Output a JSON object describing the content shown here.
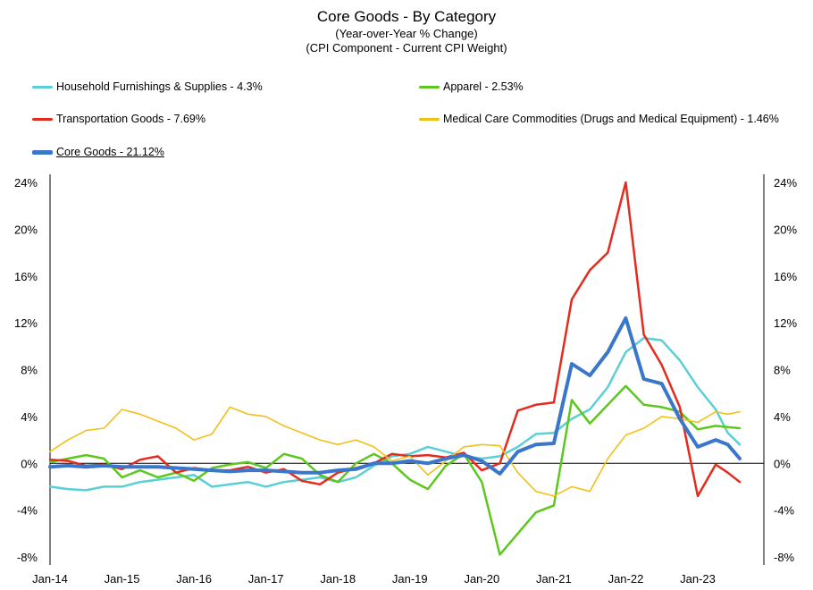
{
  "chart_data": {
    "type": "line",
    "title": "Core Goods - By Category",
    "subtitle1": "(Year-over-Year % Change)",
    "subtitle2": "(CPI Component - Current CPI Weight)",
    "xlabel": "",
    "ylabel": "",
    "ylim": [
      -8,
      24
    ],
    "y_ticks": [
      "24%",
      "20%",
      "16%",
      "12%",
      "8%",
      "4%",
      "0%",
      "-4%",
      "-8%"
    ],
    "x_ticks": [
      "Jan-14",
      "Jan-15",
      "Jan-16",
      "Jan-17",
      "Jan-18",
      "Jan-19",
      "Jan-20",
      "Jan-21",
      "Jan-22",
      "Jan-23"
    ],
    "x_range": [
      "Jan-14",
      "Aug-23"
    ],
    "grid": false,
    "legend_position": "top",
    "series": [
      {
        "name": "Household Furnishings & Supplies - 4.3%",
        "color": "#5BCFD6",
        "points": [
          [
            "Jan-14",
            -2.0
          ],
          [
            "Apr-14",
            -2.2
          ],
          [
            "Jul-14",
            -2.3
          ],
          [
            "Oct-14",
            -2.0
          ],
          [
            "Jan-15",
            -2.0
          ],
          [
            "Apr-15",
            -1.6
          ],
          [
            "Jul-15",
            -1.4
          ],
          [
            "Oct-15",
            -1.2
          ],
          [
            "Jan-16",
            -1.0
          ],
          [
            "Apr-16",
            -2.0
          ],
          [
            "Jul-16",
            -1.8
          ],
          [
            "Oct-16",
            -1.6
          ],
          [
            "Jan-17",
            -2.0
          ],
          [
            "Apr-17",
            -1.6
          ],
          [
            "Jul-17",
            -1.4
          ],
          [
            "Oct-17",
            -1.2
          ],
          [
            "Jan-18",
            -1.6
          ],
          [
            "Apr-18",
            -1.2
          ],
          [
            "Jul-18",
            -0.2
          ],
          [
            "Oct-18",
            0.6
          ],
          [
            "Jan-19",
            0.8
          ],
          [
            "Apr-19",
            1.4
          ],
          [
            "Jul-19",
            1.0
          ],
          [
            "Oct-19",
            0.6
          ],
          [
            "Jan-20",
            0.4
          ],
          [
            "Apr-20",
            0.6
          ],
          [
            "Jul-20",
            1.4
          ],
          [
            "Oct-20",
            2.5
          ],
          [
            "Jan-21",
            2.6
          ],
          [
            "Apr-21",
            3.8
          ],
          [
            "Jul-21",
            4.6
          ],
          [
            "Oct-21",
            6.5
          ],
          [
            "Jan-22",
            9.5
          ],
          [
            "Apr-22",
            10.7
          ],
          [
            "Jul-22",
            10.5
          ],
          [
            "Oct-22",
            8.8
          ],
          [
            "Jan-23",
            6.5
          ],
          [
            "Apr-23",
            4.6
          ],
          [
            "Jun-23",
            2.6
          ],
          [
            "Aug-23",
            1.6
          ]
        ]
      },
      {
        "name": "Apparel - 2.53%",
        "color": "#5CC81E",
        "points": [
          [
            "Jan-14",
            0.1
          ],
          [
            "Apr-14",
            0.4
          ],
          [
            "Jul-14",
            0.7
          ],
          [
            "Oct-14",
            0.4
          ],
          [
            "Jan-15",
            -1.2
          ],
          [
            "Apr-15",
            -0.6
          ],
          [
            "Jul-15",
            -1.2
          ],
          [
            "Oct-15",
            -0.8
          ],
          [
            "Jan-16",
            -1.5
          ],
          [
            "Apr-16",
            -0.4
          ],
          [
            "Jul-16",
            -0.1
          ],
          [
            "Oct-16",
            0.1
          ],
          [
            "Jan-17",
            -0.4
          ],
          [
            "Apr-17",
            0.8
          ],
          [
            "Jul-17",
            0.4
          ],
          [
            "Oct-17",
            -1.0
          ],
          [
            "Jan-18",
            -1.6
          ],
          [
            "Apr-18",
            0.0
          ],
          [
            "Jul-18",
            0.8
          ],
          [
            "Oct-18",
            0.0
          ],
          [
            "Jan-19",
            -1.4
          ],
          [
            "Apr-19",
            -2.2
          ],
          [
            "Jul-19",
            -0.2
          ],
          [
            "Oct-19",
            0.8
          ],
          [
            "Jan-20",
            -1.6
          ],
          [
            "Apr-20",
            -7.8
          ],
          [
            "Jul-20",
            -6.0
          ],
          [
            "Oct-20",
            -4.2
          ],
          [
            "Jan-21",
            -3.6
          ],
          [
            "Apr-21",
            5.4
          ],
          [
            "Jul-21",
            3.4
          ],
          [
            "Oct-21",
            5.0
          ],
          [
            "Jan-22",
            6.6
          ],
          [
            "Apr-22",
            5.0
          ],
          [
            "Jul-22",
            4.8
          ],
          [
            "Oct-22",
            4.4
          ],
          [
            "Jan-23",
            2.9
          ],
          [
            "Apr-23",
            3.2
          ],
          [
            "Jun-23",
            3.1
          ],
          [
            "Aug-23",
            3.0
          ]
        ]
      },
      {
        "name": "Transportation Goods - 7.69%",
        "color": "#E52A1E",
        "points": [
          [
            "Jan-14",
            0.3
          ],
          [
            "Apr-14",
            0.2
          ],
          [
            "Jul-14",
            -0.2
          ],
          [
            "Oct-14",
            -0.1
          ],
          [
            "Jan-15",
            -0.5
          ],
          [
            "Apr-15",
            0.3
          ],
          [
            "Jul-15",
            0.6
          ],
          [
            "Oct-15",
            -0.8
          ],
          [
            "Jan-16",
            -0.4
          ],
          [
            "Apr-16",
            -0.6
          ],
          [
            "Jul-16",
            -0.6
          ],
          [
            "Oct-16",
            -0.3
          ],
          [
            "Jan-17",
            -0.8
          ],
          [
            "Apr-17",
            -0.5
          ],
          [
            "Jul-17",
            -1.5
          ],
          [
            "Oct-17",
            -1.8
          ],
          [
            "Jan-18",
            -0.8
          ],
          [
            "Apr-18",
            -0.4
          ],
          [
            "Jul-18",
            0.0
          ],
          [
            "Oct-18",
            0.8
          ],
          [
            "Jan-19",
            0.6
          ],
          [
            "Apr-19",
            0.7
          ],
          [
            "Jul-19",
            0.5
          ],
          [
            "Oct-19",
            0.9
          ],
          [
            "Jan-20",
            -0.6
          ],
          [
            "Apr-20",
            0.0
          ],
          [
            "Jul-20",
            4.5
          ],
          [
            "Oct-20",
            5.0
          ],
          [
            "Jan-21",
            5.2
          ],
          [
            "Apr-21",
            14.0
          ],
          [
            "Jul-21",
            16.5
          ],
          [
            "Oct-21",
            18.0
          ],
          [
            "Jan-22",
            24.0
          ],
          [
            "Apr-22",
            11.0
          ],
          [
            "Jul-22",
            8.4
          ],
          [
            "Oct-22",
            4.8
          ],
          [
            "Jan-23",
            -2.8
          ],
          [
            "Apr-23",
            -0.1
          ],
          [
            "Jun-23",
            -0.8
          ],
          [
            "Aug-23",
            -1.6
          ]
        ]
      },
      {
        "name": "Medical Care Commodities (Drugs and Medical Equipment) - 1.46%",
        "color": "#F2C019",
        "points": [
          [
            "Jan-14",
            1.0
          ],
          [
            "Apr-14",
            2.0
          ],
          [
            "Jul-14",
            2.8
          ],
          [
            "Oct-14",
            3.0
          ],
          [
            "Jan-15",
            4.6
          ],
          [
            "Apr-15",
            4.2
          ],
          [
            "Jul-15",
            3.6
          ],
          [
            "Oct-15",
            3.0
          ],
          [
            "Jan-16",
            2.0
          ],
          [
            "Apr-16",
            2.5
          ],
          [
            "Jul-16",
            4.8
          ],
          [
            "Oct-16",
            4.2
          ],
          [
            "Jan-17",
            4.0
          ],
          [
            "Apr-17",
            3.2
          ],
          [
            "Jul-17",
            2.6
          ],
          [
            "Oct-17",
            2.0
          ],
          [
            "Jan-18",
            1.6
          ],
          [
            "Apr-18",
            2.0
          ],
          [
            "Jul-18",
            1.4
          ],
          [
            "Oct-18",
            0.2
          ],
          [
            "Jan-19",
            0.6
          ],
          [
            "Apr-19",
            -1.0
          ],
          [
            "Jul-19",
            0.2
          ],
          [
            "Oct-19",
            1.4
          ],
          [
            "Jan-20",
            1.6
          ],
          [
            "Apr-20",
            1.5
          ],
          [
            "Jul-20",
            -0.8
          ],
          [
            "Oct-20",
            -2.4
          ],
          [
            "Jan-21",
            -2.8
          ],
          [
            "Apr-21",
            -2.0
          ],
          [
            "Jul-21",
            -2.4
          ],
          [
            "Oct-21",
            0.4
          ],
          [
            "Jan-22",
            2.4
          ],
          [
            "Apr-22",
            3.0
          ],
          [
            "Jul-22",
            4.0
          ],
          [
            "Oct-22",
            3.8
          ],
          [
            "Jan-23",
            3.5
          ],
          [
            "Apr-23",
            4.4
          ],
          [
            "Jun-23",
            4.2
          ],
          [
            "Aug-23",
            4.4
          ]
        ]
      },
      {
        "name": "Core Goods - 21.12%",
        "color": "#3A76C9",
        "points": [
          [
            "Jan-14",
            -0.3
          ],
          [
            "Apr-14",
            -0.2
          ],
          [
            "Jul-14",
            -0.3
          ],
          [
            "Oct-14",
            -0.2
          ],
          [
            "Jan-15",
            -0.3
          ],
          [
            "Apr-15",
            -0.3
          ],
          [
            "Jul-15",
            -0.3
          ],
          [
            "Oct-15",
            -0.4
          ],
          [
            "Jan-16",
            -0.5
          ],
          [
            "Apr-16",
            -0.6
          ],
          [
            "Jul-16",
            -0.7
          ],
          [
            "Oct-16",
            -0.6
          ],
          [
            "Jan-17",
            -0.6
          ],
          [
            "Apr-17",
            -0.7
          ],
          [
            "Jul-17",
            -0.8
          ],
          [
            "Oct-17",
            -0.8
          ],
          [
            "Jan-18",
            -0.6
          ],
          [
            "Apr-18",
            -0.5
          ],
          [
            "Jul-18",
            0.0
          ],
          [
            "Oct-18",
            0.0
          ],
          [
            "Jan-19",
            0.2
          ],
          [
            "Apr-19",
            0.0
          ],
          [
            "Jul-19",
            0.4
          ],
          [
            "Oct-19",
            0.7
          ],
          [
            "Jan-20",
            0.2
          ],
          [
            "Apr-20",
            -0.9
          ],
          [
            "Jul-20",
            1.0
          ],
          [
            "Oct-20",
            1.6
          ],
          [
            "Jan-21",
            1.7
          ],
          [
            "Apr-21",
            8.5
          ],
          [
            "Jul-21",
            7.5
          ],
          [
            "Oct-21",
            9.5
          ],
          [
            "Jan-22",
            12.4
          ],
          [
            "Apr-22",
            7.2
          ],
          [
            "Jul-22",
            6.8
          ],
          [
            "Oct-22",
            3.8
          ],
          [
            "Jan-23",
            1.4
          ],
          [
            "Apr-23",
            2.0
          ],
          [
            "Jun-23",
            1.6
          ],
          [
            "Aug-23",
            0.4
          ]
        ]
      }
    ]
  }
}
